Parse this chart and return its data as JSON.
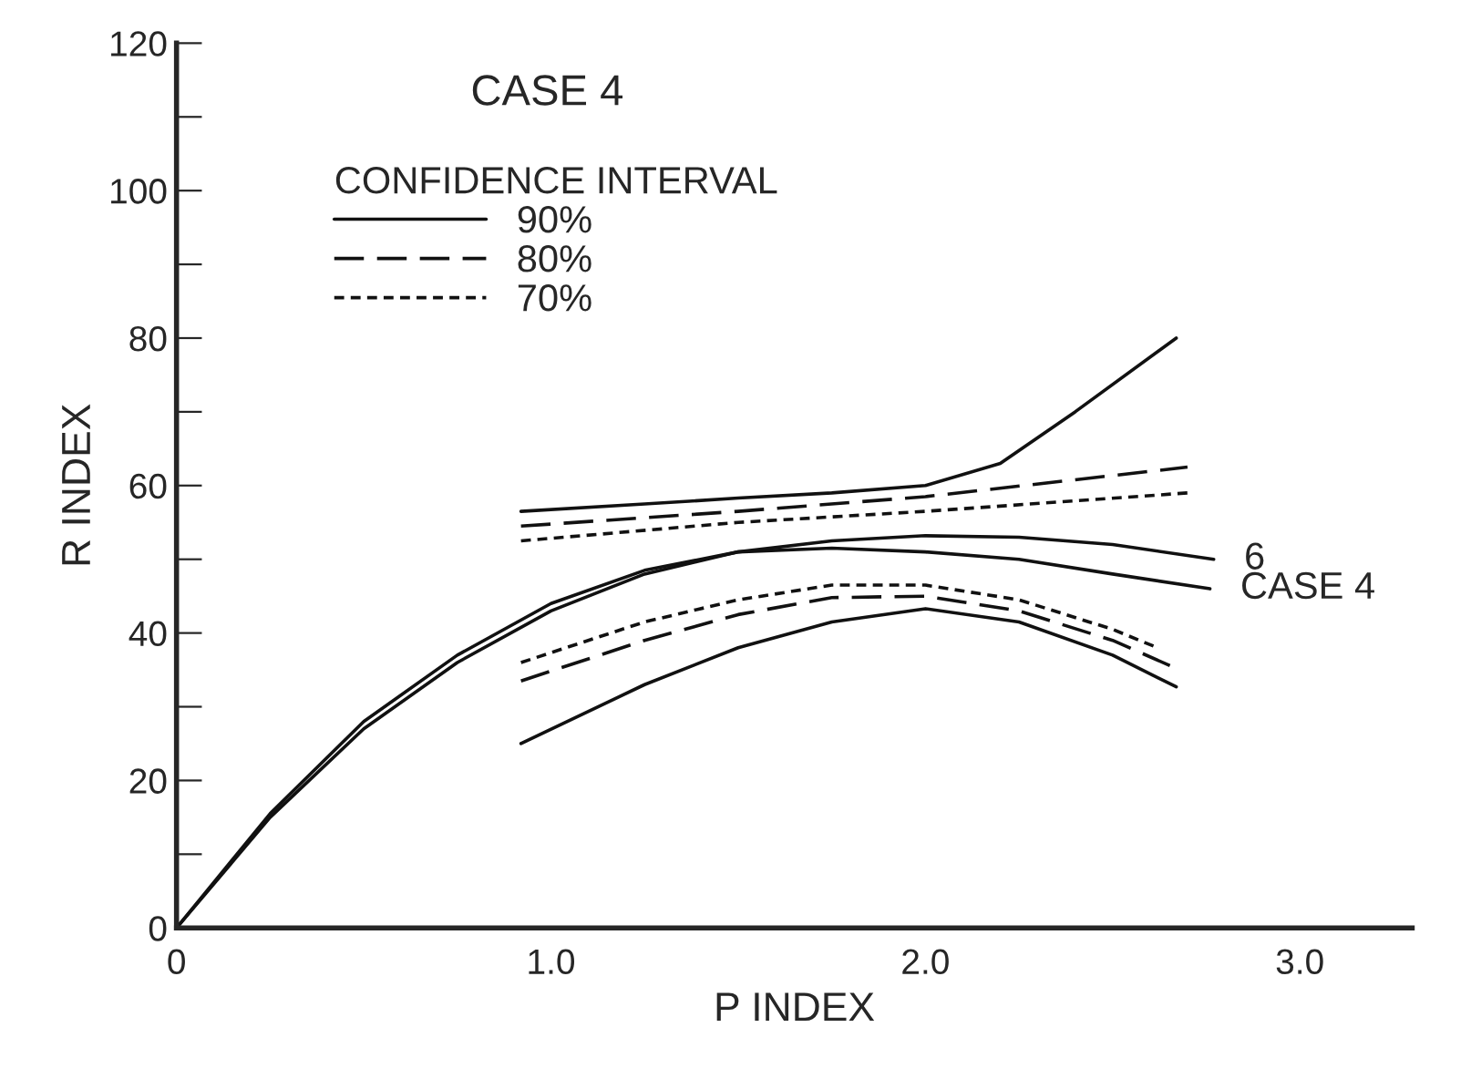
{
  "chart_data": {
    "type": "line",
    "title": "CASE 4",
    "legend_title": "CONFIDENCE INTERVAL",
    "xlabel": "P INDEX",
    "ylabel": "R INDEX",
    "xlim": [
      0,
      3.3
    ],
    "ylim": [
      0,
      120
    ],
    "xticks": [
      {
        "value": 0,
        "label": "0"
      },
      {
        "value": 1,
        "label": "1.0"
      },
      {
        "value": 2,
        "label": "2.0"
      },
      {
        "value": 3,
        "label": "3.0"
      }
    ],
    "yticks": [
      0,
      {
        "value": 10,
        "label": null
      },
      20,
      {
        "value": 30,
        "label": null
      },
      40,
      {
        "value": 50,
        "label": null
      },
      60,
      {
        "value": 70,
        "label": null
      },
      80,
      {
        "value": 90,
        "label": null
      },
      100,
      {
        "value": 110,
        "label": null
      },
      120
    ],
    "grid": false,
    "legend": "top",
    "marker": "none",
    "series": [
      {
        "color": "#111111",
        "line_style": "solid",
        "x": [
          0,
          0.25,
          0.5,
          0.75,
          1.0,
          1.25,
          1.5,
          1.75,
          2.0,
          2.25,
          2.5,
          2.76
        ],
        "values": [
          0,
          15,
          27,
          36,
          43,
          48,
          51,
          51.5,
          51,
          50,
          48,
          46
        ]
      },
      {
        "color": "#111111",
        "line_style": "solid",
        "x": [
          0,
          0.25,
          0.5,
          0.75,
          1.0,
          1.25,
          1.5,
          1.75,
          2.0,
          2.25,
          2.5,
          2.77
        ],
        "values": [
          0,
          15.5,
          28,
          37,
          44,
          48.5,
          51,
          52.5,
          53.2,
          53,
          52,
          50
        ]
      },
      {
        "name": "90%",
        "color": "#111111",
        "line_style": "solid",
        "x": [
          0.92,
          1.25,
          1.5,
          1.75,
          2.0,
          2.2,
          2.4,
          2.67
        ],
        "values": [
          56.5,
          57.5,
          58.3,
          59,
          60,
          63,
          70,
          80
        ]
      },
      {
        "color": "#111111",
        "line_style": "solid",
        "x": [
          0.92,
          1.25,
          1.5,
          1.75,
          2.0,
          2.25,
          2.5,
          2.67
        ],
        "values": [
          25,
          33,
          38,
          41.5,
          43.3,
          41.5,
          37,
          32.7
        ]
      },
      {
        "name": "80%",
        "color": "#111111",
        "line_style": "dashed",
        "x": [
          0.92,
          1.5,
          2.0,
          2.7
        ],
        "values": [
          54.5,
          56.5,
          58.5,
          62.5
        ]
      },
      {
        "color": "#111111",
        "line_style": "dashed",
        "x": [
          0.92,
          1.25,
          1.5,
          1.75,
          2.0,
          2.25,
          2.5,
          2.67
        ],
        "values": [
          33.5,
          39,
          42.5,
          44.8,
          45,
          43,
          39,
          35.2
        ]
      },
      {
        "name": "70%",
        "color": "#111111",
        "line_style": "dotted",
        "x": [
          0.92,
          1.5,
          2.0,
          2.7
        ],
        "values": [
          52.5,
          55,
          56.5,
          59
        ]
      },
      {
        "color": "#111111",
        "line_style": "dotted",
        "x": [
          0.92,
          1.25,
          1.5,
          1.75,
          2.0,
          2.25,
          2.5,
          2.62
        ],
        "values": [
          36,
          41.5,
          44.5,
          46.5,
          46.5,
          44.5,
          40.5,
          38
        ]
      }
    ],
    "annotations": [
      {
        "text": "6",
        "x": 2.77,
        "y": 50
      },
      {
        "text": "CASE 4",
        "x": 2.76,
        "y": 46
      }
    ]
  }
}
